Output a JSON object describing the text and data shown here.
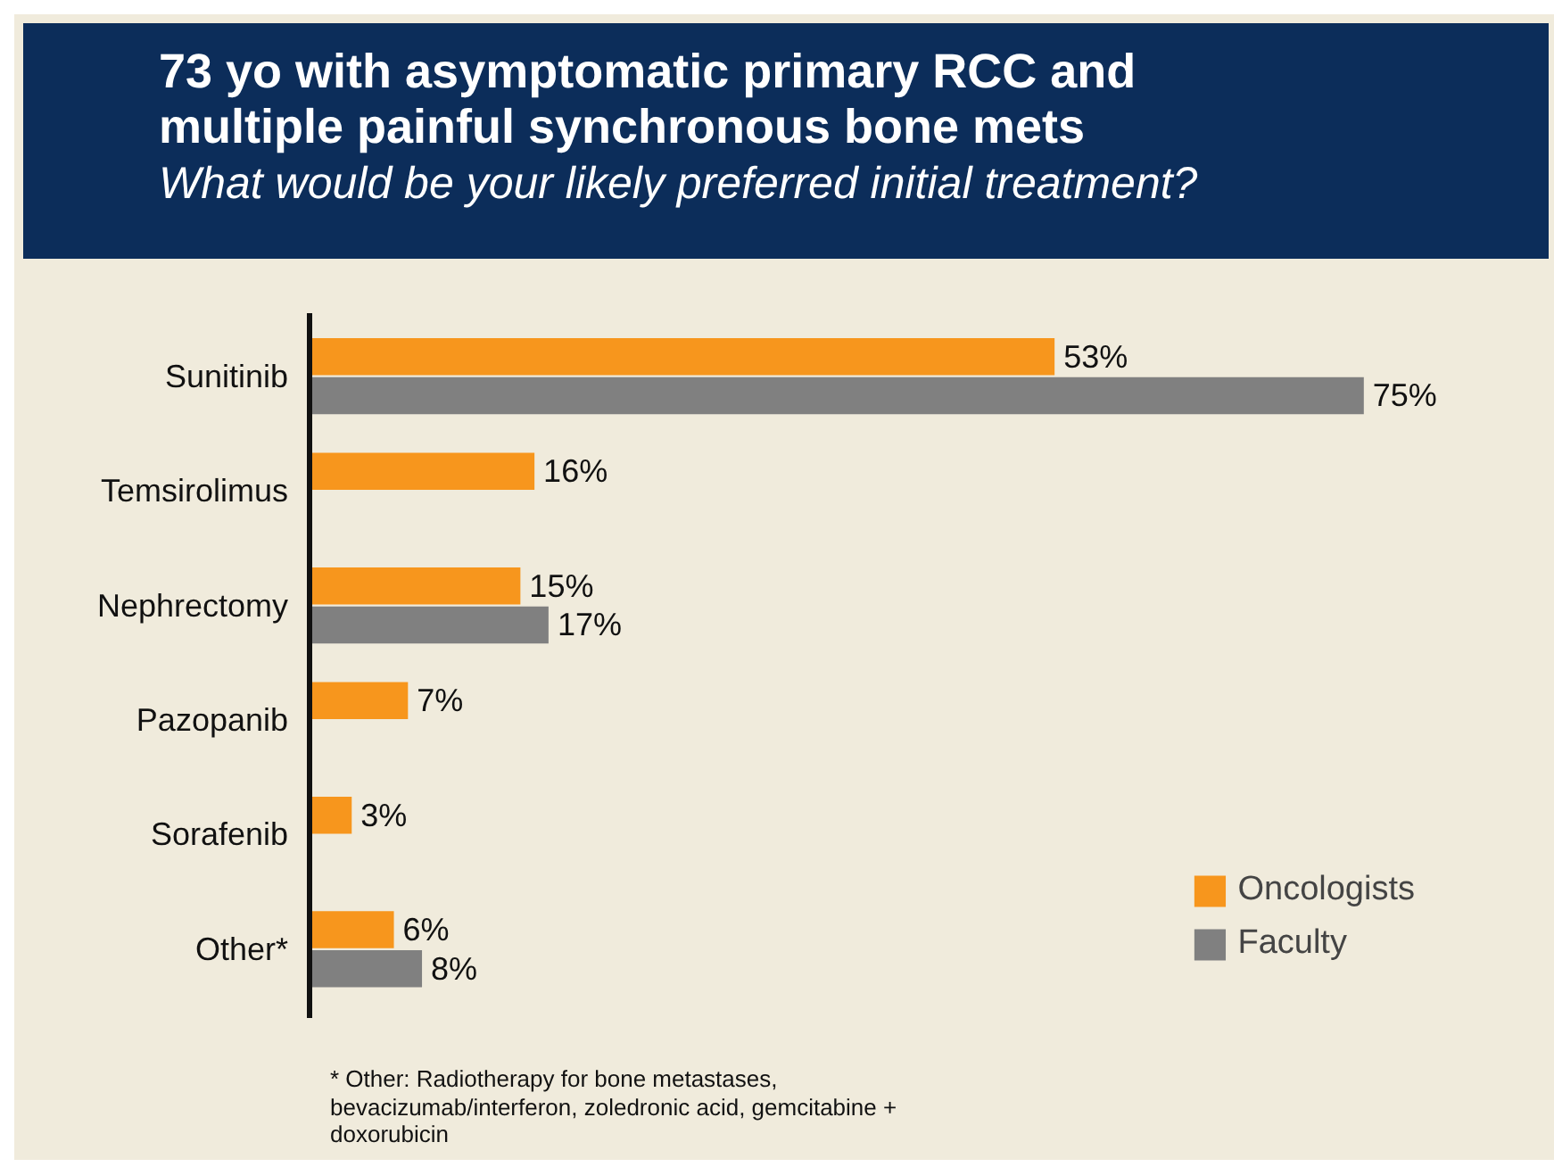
{
  "chart_data": {
    "type": "bar",
    "orientation": "horizontal",
    "title": "73 yo with asymptomatic primary RCC and multiple painful synchronous bone mets",
    "subtitle": "What would be your likely preferred initial treatment?",
    "categories": [
      "Sunitinib",
      "Temsirolimus",
      "Nephrectomy",
      "Pazopanib",
      "Sorafenib",
      "Other*"
    ],
    "series": [
      {
        "name": "Oncologists",
        "color": "#f7961d",
        "values": [
          53,
          16,
          15,
          7,
          3,
          6
        ],
        "value_labels": [
          "53%",
          "16%",
          "15%",
          "7%",
          "3%",
          "6%"
        ]
      },
      {
        "name": "Faculty",
        "color": "#808080",
        "values": [
          75,
          null,
          17,
          null,
          null,
          8
        ],
        "value_labels": [
          "75%",
          null,
          "17%",
          null,
          null,
          "8%"
        ]
      }
    ],
    "tick_labels": "y",
    "grid": false,
    "legend": "bottom right",
    "annotations": [
      "* Other: Radiotherapy for bone metastases, bevacizumab/interferon, zoledronic acid, gemcitabine + doxorubicin"
    ]
  }
}
